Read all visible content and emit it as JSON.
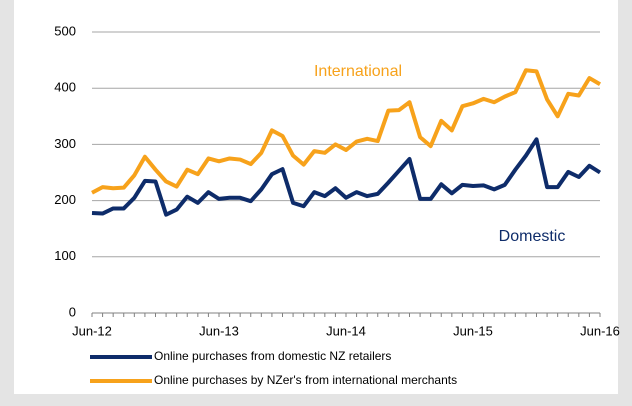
{
  "chart_data": {
    "type": "line",
    "categories": [
      "Jun-12",
      null,
      null,
      null,
      null,
      null,
      null,
      null,
      null,
      null,
      null,
      null,
      "Jun-13",
      null,
      null,
      null,
      null,
      null,
      null,
      null,
      null,
      null,
      null,
      null,
      "Jun-14",
      null,
      null,
      null,
      null,
      null,
      null,
      null,
      null,
      null,
      null,
      null,
      "Jun-15",
      null,
      null,
      null,
      null,
      null,
      null,
      null,
      null,
      null,
      null,
      null,
      "Jun-16"
    ],
    "series": [
      {
        "name": "Online purchases from domestic NZ retailers",
        "color": "#0e2c6a",
        "values": [
          178,
          177,
          186,
          186,
          205,
          235,
          234,
          175,
          184,
          207,
          196,
          215,
          203,
          205,
          205,
          199,
          220,
          247,
          256,
          196,
          190,
          215,
          208,
          222,
          205,
          215,
          208,
          212,
          232,
          253,
          274,
          203,
          203,
          229,
          213,
          228,
          226,
          227,
          220,
          228,
          255,
          280,
          309,
          224,
          224,
          251,
          242,
          262,
          250
        ]
      },
      {
        "name": "Online purchases by NZer's from international merchants",
        "color": "#f7a21b",
        "values": [
          214,
          224,
          222,
          223,
          245,
          278,
          255,
          234,
          225,
          255,
          247,
          275,
          270,
          275,
          273,
          265,
          285,
          325,
          315,
          280,
          264,
          288,
          285,
          300,
          290,
          305,
          310,
          306,
          360,
          361,
          375,
          313,
          297,
          342,
          325,
          368,
          373,
          381,
          375,
          385,
          393,
          432,
          430,
          380,
          350,
          390,
          387,
          418,
          407
        ]
      }
    ],
    "annotations": [
      "International",
      "Domestic"
    ],
    "ylim": [
      0,
      500
    ],
    "yticks": [
      0,
      100,
      200,
      300,
      400,
      500
    ],
    "grid": true
  }
}
